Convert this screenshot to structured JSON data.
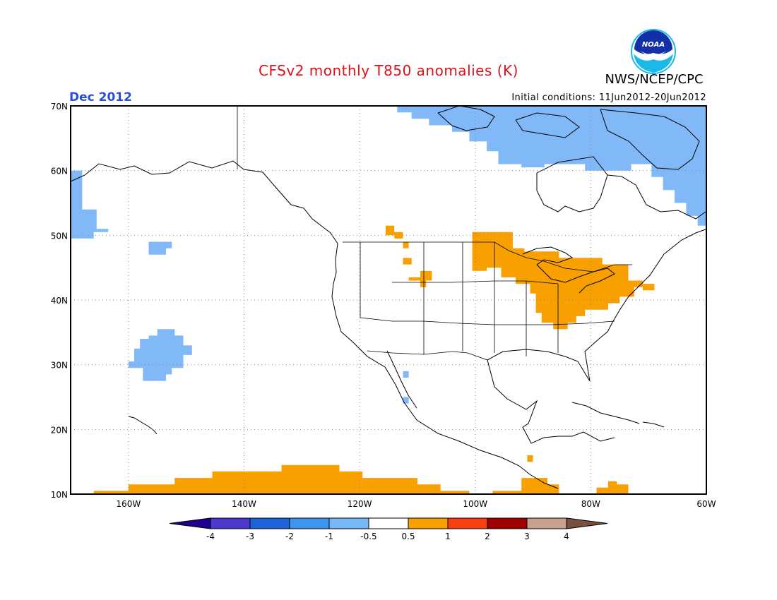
{
  "header": {
    "title": "CFSv2 monthly T850 anomalies (K)",
    "agency": "NWS/NCEP/CPC",
    "period": "Dec 2012",
    "initial_conditions": "Initial conditions: 11Jun2012-20Jun2012",
    "logo_text": "NOAA"
  },
  "map": {
    "lon_range": [
      -170,
      -60
    ],
    "lat_range": [
      10,
      70
    ],
    "lat_ticks": [
      "10N",
      "20N",
      "30N",
      "40N",
      "50N",
      "60N",
      "70N"
    ],
    "lon_ticks": [
      "160W",
      "140W",
      "120W",
      "100W",
      "80W",
      "60W"
    ],
    "grid": "dotted",
    "anomaly_regions": [
      {
        "name": "arctic-canada-cold",
        "category": -0.5,
        "color": "#80b8f8",
        "polygon": [
          [
            -113.5,
            70
          ],
          [
            -60,
            70
          ],
          [
            -60,
            51.5
          ],
          [
            -61.5,
            51.5
          ],
          [
            -61.5,
            53
          ],
          [
            -63.5,
            53
          ],
          [
            -63.5,
            55
          ],
          [
            -65.5,
            55
          ],
          [
            -65.5,
            57
          ],
          [
            -67.5,
            57
          ],
          [
            -67.5,
            59
          ],
          [
            -69.5,
            59
          ],
          [
            -69.5,
            61
          ],
          [
            -73,
            61
          ],
          [
            -73,
            60
          ],
          [
            -81,
            60
          ],
          [
            -81,
            61
          ],
          [
            -88,
            61
          ],
          [
            -88,
            60.5
          ],
          [
            -92,
            60.5
          ],
          [
            -92,
            61
          ],
          [
            -96,
            61
          ],
          [
            -96,
            63
          ],
          [
            -98,
            63
          ],
          [
            -98,
            64.5
          ],
          [
            -101,
            64.5
          ],
          [
            -101,
            66
          ],
          [
            -104,
            66
          ],
          [
            -104,
            67
          ],
          [
            -108,
            67
          ],
          [
            -108,
            68
          ],
          [
            -111,
            68
          ],
          [
            -111,
            69
          ],
          [
            -113.5,
            69
          ]
        ]
      },
      {
        "name": "alaska-coast-cold",
        "category": -0.5,
        "color": "#80b8f8",
        "polygon": [
          [
            -170,
            60
          ],
          [
            -168,
            60
          ],
          [
            -168,
            54
          ],
          [
            -165.5,
            54
          ],
          [
            -165.5,
            51
          ],
          [
            -163.5,
            51
          ],
          [
            -163.5,
            50.5
          ],
          [
            -166,
            50.5
          ],
          [
            -166,
            49.5
          ],
          [
            -170,
            49.5
          ]
        ]
      },
      {
        "name": "pacific-small-cold",
        "category": -0.5,
        "color": "#80b8f8",
        "polygon": [
          [
            -156.5,
            49
          ],
          [
            -152.5,
            49
          ],
          [
            -152.5,
            48
          ],
          [
            -153.5,
            48
          ],
          [
            -153.5,
            47
          ],
          [
            -156.5,
            47
          ]
        ]
      },
      {
        "name": "hawaii-north-cold",
        "category": -0.5,
        "color": "#80b8f8",
        "polygon": [
          [
            -155,
            35.5
          ],
          [
            -152,
            35.5
          ],
          [
            -152,
            34.5
          ],
          [
            -150.5,
            34.5
          ],
          [
            -150.5,
            33
          ],
          [
            -149,
            33
          ],
          [
            -149,
            31.5
          ],
          [
            -150.5,
            31.5
          ],
          [
            -150.5,
            29.5
          ],
          [
            -152.5,
            29.5
          ],
          [
            -152.5,
            28.5
          ],
          [
            -153.5,
            28.5
          ],
          [
            -153.5,
            27.5
          ],
          [
            -157.5,
            27.5
          ],
          [
            -157.5,
            29.5
          ],
          [
            -159,
            29.5
          ],
          [
            -159,
            29.5
          ],
          [
            -160,
            29.5
          ],
          [
            -160,
            30.5
          ],
          [
            -159,
            30.5
          ],
          [
            -159,
            32.5
          ],
          [
            -158,
            32.5
          ],
          [
            -158,
            34
          ],
          [
            -156.5,
            34
          ],
          [
            -156.5,
            34.5
          ],
          [
            -155,
            34.5
          ]
        ]
      },
      {
        "name": "baja-dot-cold",
        "category": -0.5,
        "color": "#80b8f8",
        "polygon": [
          [
            -112.5,
            29
          ],
          [
            -111.5,
            29
          ],
          [
            -111.5,
            28
          ],
          [
            -112.5,
            28
          ]
        ]
      },
      {
        "name": "baja-dot2-cold",
        "category": -0.5,
        "color": "#80b8f8",
        "polygon": [
          [
            -112.5,
            25
          ],
          [
            -111.5,
            25
          ],
          [
            -111.5,
            24
          ],
          [
            -112.5,
            24
          ]
        ]
      },
      {
        "name": "great-lakes-warm",
        "category": 0.5,
        "color": "#f8a000",
        "polygon": [
          [
            -100.5,
            50.5
          ],
          [
            -93.5,
            50.5
          ],
          [
            -93.5,
            48
          ],
          [
            -91.5,
            48
          ],
          [
            -91.5,
            47.5
          ],
          [
            -85.5,
            47.5
          ],
          [
            -85.5,
            46.5
          ],
          [
            -78,
            46.5
          ],
          [
            -78,
            45.5
          ],
          [
            -73.5,
            45.5
          ],
          [
            -73.5,
            43
          ],
          [
            -71,
            43
          ],
          [
            -71,
            42
          ],
          [
            -72.5,
            42
          ],
          [
            -72.5,
            40.5
          ],
          [
            -75,
            40.5
          ],
          [
            -75,
            39.5
          ],
          [
            -77,
            39.5
          ],
          [
            -77,
            38.5
          ],
          [
            -81,
            38.5
          ],
          [
            -81,
            37.5
          ],
          [
            -82.5,
            37.5
          ],
          [
            -82.5,
            36.5
          ],
          [
            -84,
            36.5
          ],
          [
            -84,
            35.5
          ],
          [
            -86.5,
            35.5
          ],
          [
            -86.5,
            36.5
          ],
          [
            -88.5,
            36.5
          ],
          [
            -88.5,
            38
          ],
          [
            -89.5,
            38
          ],
          [
            -89.5,
            41
          ],
          [
            -90.5,
            41
          ],
          [
            -90.5,
            42.5
          ],
          [
            -93,
            42.5
          ],
          [
            -93,
            43.5
          ],
          [
            -95.5,
            43.5
          ],
          [
            -95.5,
            45
          ],
          [
            -98,
            45
          ],
          [
            -98,
            44.5
          ],
          [
            -100.5,
            44.5
          ]
        ]
      },
      {
        "name": "montana-warm",
        "category": 0.5,
        "color": "#f8a000",
        "polygon": [
          [
            -115.5,
            51.5
          ],
          [
            -114,
            51.5
          ],
          [
            -114,
            50.5
          ],
          [
            -112.5,
            50.5
          ],
          [
            -112.5,
            49
          ],
          [
            -111.5,
            49
          ],
          [
            -111.5,
            48
          ],
          [
            -112.5,
            48
          ],
          [
            -112.5,
            49.5
          ],
          [
            -114,
            49.5
          ],
          [
            -114,
            50
          ],
          [
            -115.5,
            50
          ]
        ]
      },
      {
        "name": "montana-warm2",
        "category": 0.5,
        "color": "#f8a000",
        "polygon": [
          [
            -112.5,
            46.5
          ],
          [
            -111,
            46.5
          ],
          [
            -111,
            45.5
          ],
          [
            -112.5,
            45.5
          ]
        ]
      },
      {
        "name": "wyoming-warm",
        "category": 0.5,
        "color": "#f8a000",
        "polygon": [
          [
            -109.5,
            44.5
          ],
          [
            -107.5,
            44.5
          ],
          [
            -107.5,
            43
          ],
          [
            -108.5,
            43
          ],
          [
            -108.5,
            42
          ],
          [
            -109.5,
            42
          ],
          [
            -109.5,
            43
          ],
          [
            -111.5,
            43
          ],
          [
            -111.5,
            43.5
          ],
          [
            -109.5,
            43.5
          ]
        ]
      },
      {
        "name": "new-england-warm",
        "category": 0.5,
        "color": "#f8a000",
        "polygon": [
          [
            -71,
            42.5
          ],
          [
            -69,
            42.5
          ],
          [
            -69,
            41.5
          ],
          [
            -71,
            41.5
          ]
        ]
      },
      {
        "name": "tropical-pacific-warm",
        "category": 0.5,
        "color": "#f8a000",
        "polygon": [
          [
            -166,
            10
          ],
          [
            -101,
            10
          ],
          [
            -101,
            10.5
          ],
          [
            -106,
            10.5
          ],
          [
            -106,
            11.5
          ],
          [
            -110,
            11.5
          ],
          [
            -110,
            12.5
          ],
          [
            -119.5,
            12.5
          ],
          [
            -119.5,
            13.5
          ],
          [
            -123.5,
            13.5
          ],
          [
            -123.5,
            14.5
          ],
          [
            -133.5,
            14.5
          ],
          [
            -133.5,
            13.5
          ],
          [
            -145.5,
            13.5
          ],
          [
            -145.5,
            12.5
          ],
          [
            -152,
            12.5
          ],
          [
            -152,
            11.5
          ],
          [
            -160,
            11.5
          ],
          [
            -160,
            10.5
          ],
          [
            -166,
            10.5
          ]
        ]
      },
      {
        "name": "central-america-warm",
        "category": 0.5,
        "color": "#f8a000",
        "polygon": [
          [
            -92,
            12.5
          ],
          [
            -87.5,
            12.5
          ],
          [
            -87.5,
            11.5
          ],
          [
            -85.5,
            11.5
          ],
          [
            -85.5,
            10
          ],
          [
            -97,
            10
          ],
          [
            -97,
            10.5
          ],
          [
            -92,
            10.5
          ]
        ]
      },
      {
        "name": "guatemala-warm",
        "category": 0.5,
        "color": "#f8a000",
        "polygon": [
          [
            -91,
            16
          ],
          [
            -90,
            16
          ],
          [
            -90,
            15
          ],
          [
            -91,
            15
          ]
        ]
      },
      {
        "name": "caribbean-warm",
        "category": 0.5,
        "color": "#f8a000",
        "polygon": [
          [
            -77,
            12
          ],
          [
            -75.5,
            12
          ],
          [
            -75.5,
            11.5
          ],
          [
            -73.5,
            11.5
          ],
          [
            -73.5,
            10
          ],
          [
            -79,
            10
          ],
          [
            -79,
            11
          ],
          [
            -77,
            11
          ]
        ]
      }
    ]
  },
  "colorbar": {
    "labels": [
      "-4",
      "-3",
      "-2",
      "-1",
      "-0.5",
      "0.5",
      "1",
      "2",
      "3",
      "4"
    ],
    "colors": [
      "#200090",
      "#4c3ad0",
      "#1e64d8",
      "#3c96f0",
      "#78b8f8",
      "#ffffff",
      "#f8a000",
      "#f84010",
      "#a00000",
      "#c8a090",
      "#785040"
    ]
  }
}
